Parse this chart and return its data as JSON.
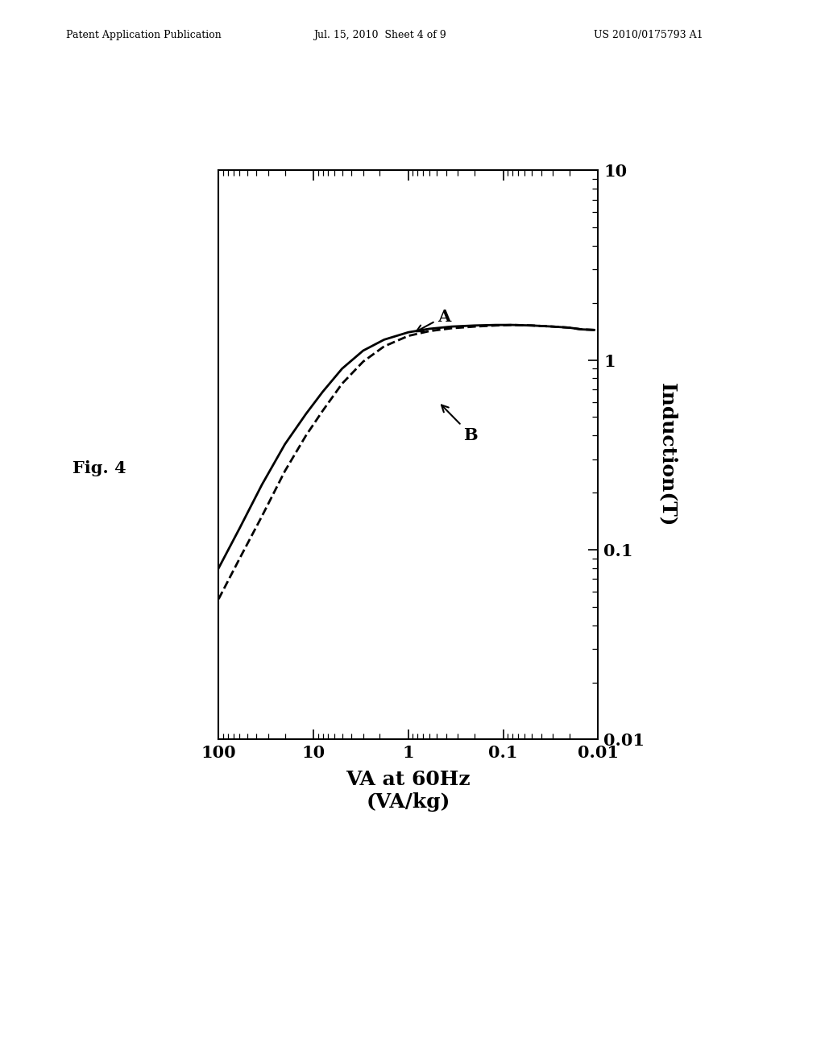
{
  "title": "",
  "xlabel": "VA at 60Hz\n(VA/kg)",
  "ylabel": "Induction(T)",
  "fig_label": "Fig. 4",
  "header_left": "Patent Application Publication",
  "header_center": "Jul. 15, 2010  Sheet 4 of 9",
  "header_right": "US 2010/0175793 A1",
  "xlim_log": [
    0.01,
    100
  ],
  "ylim_log": [
    0.01,
    10
  ],
  "curve_A_x": [
    0.011,
    0.015,
    0.02,
    0.03,
    0.05,
    0.08,
    0.12,
    0.2,
    0.35,
    0.6,
    1.0,
    1.8,
    3.0,
    5.0,
    8.0,
    12.0,
    20.0,
    35.0,
    60.0,
    100.0
  ],
  "curve_A_y": [
    1.44,
    1.45,
    1.48,
    1.5,
    1.52,
    1.53,
    1.53,
    1.52,
    1.5,
    1.46,
    1.4,
    1.28,
    1.12,
    0.9,
    0.68,
    0.52,
    0.36,
    0.22,
    0.13,
    0.08
  ],
  "curve_B_x": [
    0.011,
    0.015,
    0.02,
    0.03,
    0.05,
    0.08,
    0.12,
    0.2,
    0.35,
    0.6,
    1.0,
    1.8,
    3.0,
    5.0,
    8.0,
    12.0,
    20.0,
    35.0,
    60.0,
    100.0
  ],
  "curve_B_y": [
    1.44,
    1.45,
    1.48,
    1.5,
    1.52,
    1.53,
    1.52,
    1.5,
    1.47,
    1.42,
    1.34,
    1.18,
    0.98,
    0.75,
    0.54,
    0.4,
    0.26,
    0.15,
    0.09,
    0.055
  ],
  "curve_A_color": "#000000",
  "curve_A_style": "solid",
  "curve_A_linewidth": 2.0,
  "curve_B_color": "#000000",
  "curve_B_style": "dashed",
  "curve_B_linewidth": 2.0,
  "label_A": "A",
  "label_B": "B",
  "background_color": "#ffffff",
  "plot_bg_color": "#ffffff",
  "tick_label_fontsize": 15,
  "axis_label_fontsize": 18
}
